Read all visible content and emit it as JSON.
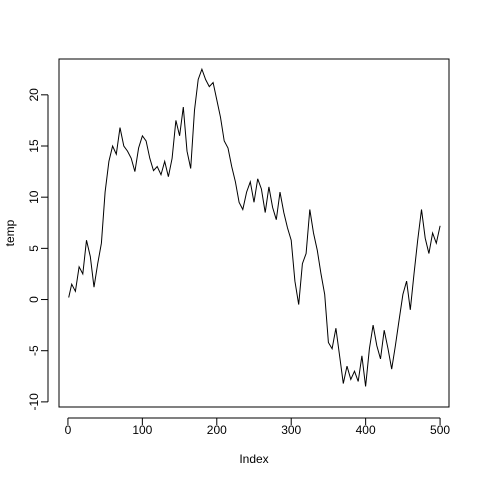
{
  "chart_data": {
    "type": "line",
    "title": "",
    "xlabel": "Index",
    "ylabel": "temp",
    "xlim": [
      -12,
      512
    ],
    "ylim": [
      -10.5,
      23.5
    ],
    "xticks": [
      0,
      100,
      200,
      300,
      400,
      500
    ],
    "yticks": [
      -10,
      -5,
      0,
      5,
      10,
      15,
      20
    ],
    "xtick_labels": [
      "0",
      "100",
      "200",
      "300",
      "400",
      "500"
    ],
    "ytick_labels": [
      "-10",
      "-5",
      "0",
      "5",
      "10",
      "15",
      "20"
    ],
    "grid": false,
    "line_color": "#000000",
    "series": [
      {
        "x": [
          1,
          5,
          10,
          15,
          20,
          25,
          30,
          35,
          40,
          45,
          50,
          55,
          60,
          65,
          70,
          75,
          80,
          85,
          90,
          95,
          100,
          105,
          110,
          115,
          120,
          125,
          130,
          135,
          140,
          145,
          150,
          155,
          160,
          165,
          170,
          175,
          180,
          185,
          190,
          195,
          200,
          205,
          210,
          215,
          220,
          225,
          230,
          235,
          240,
          245,
          250,
          255,
          260,
          265,
          270,
          275,
          280,
          285,
          290,
          295,
          300,
          305,
          310,
          315,
          320,
          325,
          330,
          335,
          340,
          345,
          350,
          355,
          360,
          365,
          370,
          375,
          380,
          385,
          390,
          395,
          400,
          405,
          410,
          415,
          420,
          425,
          430,
          435,
          440,
          445,
          450,
          455,
          460,
          465,
          470,
          475,
          480,
          485,
          490,
          495,
          500
        ],
        "y": [
          0.2,
          1.5,
          0.8,
          3.2,
          2.5,
          5.8,
          4.2,
          1.2,
          3.5,
          5.5,
          10.5,
          13.5,
          15.0,
          14.2,
          16.8,
          15.0,
          14.5,
          13.8,
          12.5,
          14.8,
          16.0,
          15.5,
          13.8,
          12.6,
          13.0,
          12.2,
          13.5,
          12.0,
          13.8,
          17.5,
          16.0,
          18.8,
          14.5,
          12.8,
          18.5,
          21.5,
          22.5,
          21.5,
          20.8,
          21.2,
          19.5,
          17.8,
          15.5,
          14.8,
          13.0,
          11.5,
          9.5,
          8.8,
          10.5,
          11.5,
          9.5,
          11.8,
          10.8,
          8.5,
          11.0,
          9.0,
          7.8,
          10.5,
          8.5,
          7.0,
          5.8,
          1.8,
          -0.5,
          3.5,
          4.5,
          8.8,
          6.5,
          4.8,
          2.5,
          0.5,
          -4.2,
          -4.8,
          -2.8,
          -5.5,
          -8.2,
          -6.5,
          -7.8,
          -7.0,
          -8.0,
          -5.5,
          -8.5,
          -4.8,
          -2.5,
          -4.5,
          -5.8,
          -3.0,
          -4.8,
          -6.8,
          -4.5,
          -2.0,
          0.5,
          1.8,
          -1.0,
          2.5,
          5.8,
          8.8,
          6.0,
          4.5,
          6.5,
          5.5,
          7.2
        ]
      }
    ]
  }
}
